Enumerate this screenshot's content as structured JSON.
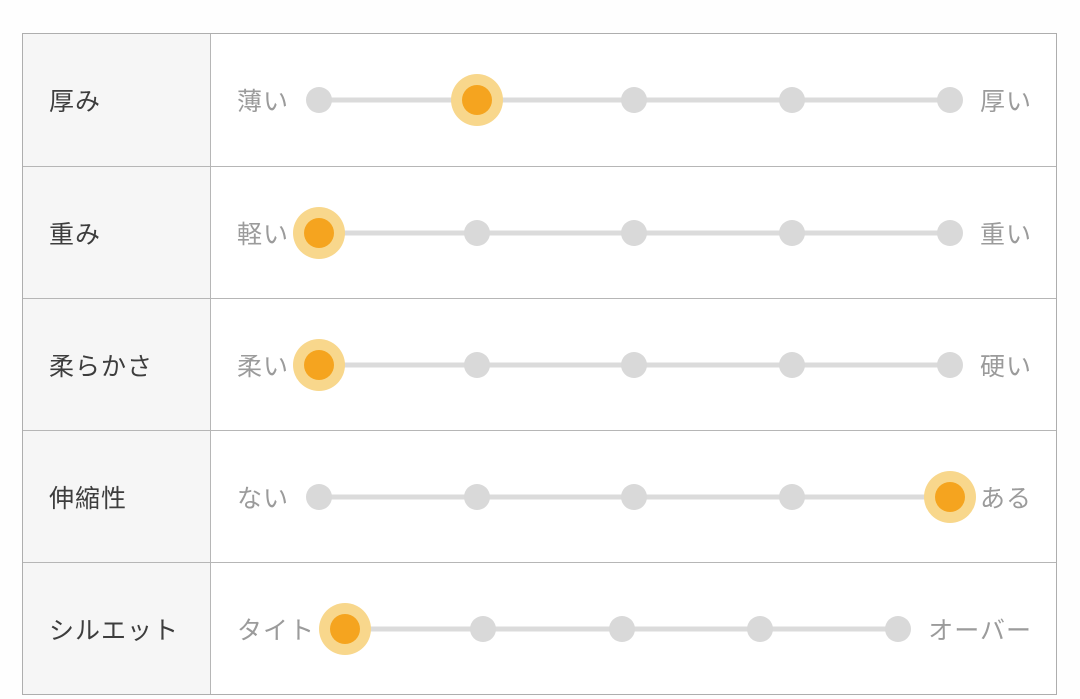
{
  "colors": {
    "selected_dot": "#F5A41F",
    "selected_halo": "#F8D78C",
    "unselected_dot": "#D9D9D9",
    "track_line": "#DBDBDB",
    "header_cell_bg": "#F6F6F6",
    "border": "#B6B6B6",
    "attribute_text": "#3D3D3D",
    "scale_label_text": "#9B9B9B"
  },
  "table": {
    "scale_steps": 5,
    "rows": [
      {
        "name": "厚み",
        "left": "薄い",
        "right": "厚い",
        "steps": 5,
        "selected": 2
      },
      {
        "name": "重み",
        "left": "軽い",
        "right": "重い",
        "steps": 5,
        "selected": 1
      },
      {
        "name": "柔らかさ",
        "left": "柔い",
        "right": "硬い",
        "steps": 5,
        "selected": 1
      },
      {
        "name": "伸縮性",
        "left": "ない",
        "right": "ある",
        "steps": 5,
        "selected": 5
      },
      {
        "name": "シルエット",
        "left": "タイト",
        "right": "オーバー",
        "steps": 5,
        "selected": 1
      }
    ]
  }
}
